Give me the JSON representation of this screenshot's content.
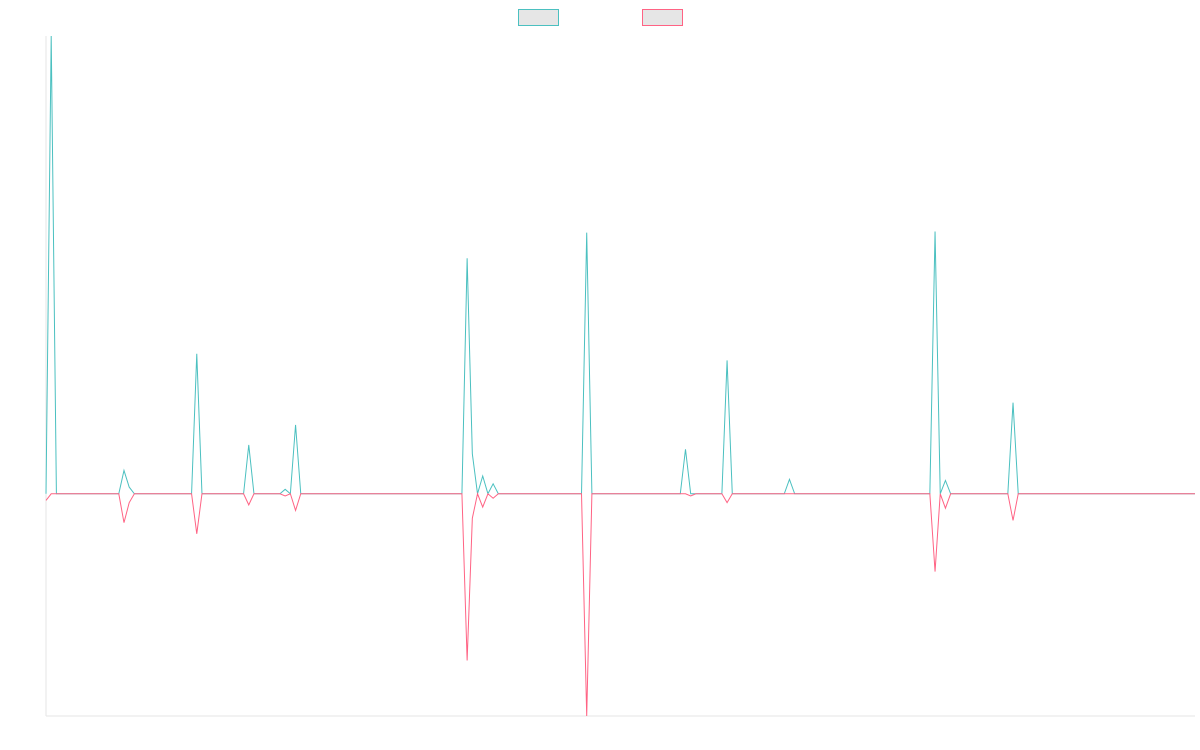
{
  "chart_data": {
    "type": "line",
    "title": "",
    "xlabel": "",
    "ylabel": "",
    "x_range": [
      0,
      221
    ],
    "ylim": [
      -100,
      206
    ],
    "baseline": 0,
    "grid": false,
    "legend_placement": "top-center",
    "series": [
      {
        "color": "#4bc0c0",
        "values": [
          [
            0,
            0
          ],
          [
            1,
            206
          ],
          [
            2,
            0
          ],
          [
            14,
            0
          ],
          [
            15,
            10.5
          ],
          [
            16,
            3
          ],
          [
            17,
            0
          ],
          [
            28,
            0
          ],
          [
            29,
            63
          ],
          [
            30,
            0
          ],
          [
            38,
            0
          ],
          [
            39,
            22
          ],
          [
            40,
            0
          ],
          [
            45,
            0
          ],
          [
            46,
            2
          ],
          [
            47,
            0
          ],
          [
            48,
            31
          ],
          [
            49,
            0
          ],
          [
            80,
            0
          ],
          [
            81,
            106
          ],
          [
            82,
            18
          ],
          [
            83,
            0
          ],
          [
            84,
            8
          ],
          [
            85,
            0
          ],
          [
            86,
            4.5
          ],
          [
            87,
            0
          ],
          [
            103,
            0
          ],
          [
            104,
            117.5
          ],
          [
            105,
            0
          ],
          [
            122,
            0
          ],
          [
            123,
            20
          ],
          [
            124,
            0
          ],
          [
            130,
            0
          ],
          [
            131,
            60
          ],
          [
            132,
            0
          ],
          [
            142,
            0
          ],
          [
            143,
            6.5
          ],
          [
            144,
            0
          ],
          [
            170,
            0
          ],
          [
            171,
            118
          ],
          [
            172,
            0
          ],
          [
            173,
            6
          ],
          [
            174,
            0
          ],
          [
            185,
            0
          ],
          [
            186,
            41
          ],
          [
            187,
            0
          ],
          [
            221,
            0
          ]
        ]
      },
      {
        "color": "#ff6384",
        "values": [
          [
            0,
            -3
          ],
          [
            1,
            0
          ],
          [
            14,
            0
          ],
          [
            15,
            -13
          ],
          [
            16,
            -4
          ],
          [
            17,
            0
          ],
          [
            28,
            0
          ],
          [
            29,
            -18
          ],
          [
            30,
            0
          ],
          [
            38,
            0
          ],
          [
            39,
            -5
          ],
          [
            40,
            0
          ],
          [
            45,
            0
          ],
          [
            46,
            -1
          ],
          [
            47,
            0
          ],
          [
            48,
            -7.5
          ],
          [
            49,
            0
          ],
          [
            80,
            0
          ],
          [
            81,
            -75
          ],
          [
            82,
            -11
          ],
          [
            83,
            0
          ],
          [
            84,
            -6
          ],
          [
            85,
            0
          ],
          [
            86,
            -2
          ],
          [
            87,
            0
          ],
          [
            103,
            0
          ],
          [
            104,
            -100
          ],
          [
            105,
            0
          ],
          [
            123,
            0
          ],
          [
            124,
            -1
          ],
          [
            125,
            0
          ],
          [
            130,
            0
          ],
          [
            131,
            -4
          ],
          [
            132,
            0
          ],
          [
            170,
            0
          ],
          [
            171,
            -35
          ],
          [
            172,
            0
          ],
          [
            173,
            -6.5
          ],
          [
            174,
            0
          ],
          [
            185,
            0
          ],
          [
            186,
            -12
          ],
          [
            187,
            0
          ],
          [
            221,
            0
          ]
        ]
      }
    ]
  }
}
